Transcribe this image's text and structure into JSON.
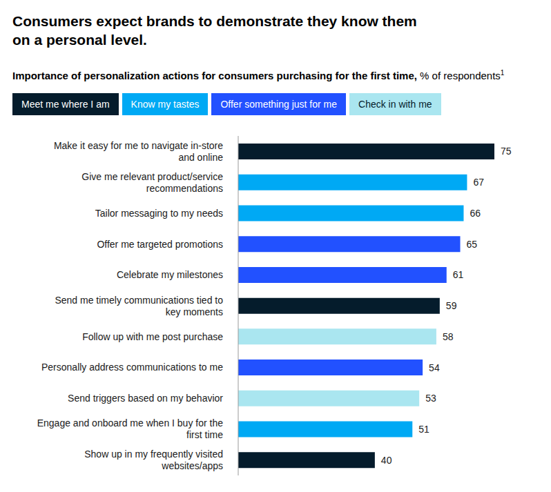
{
  "chart_data": {
    "type": "bar",
    "orientation": "horizontal",
    "title": "Consumers expect brands to demonstrate they know them on a personal level.",
    "subtitle": "Importance of personalization actions for consumers purchasing for the first time,",
    "subtitle_unit": "% of respondents",
    "subtitle_note": "1",
    "categories": [
      "Make it easy for me to navigate in-store and online",
      "Give me relevant product/service recommendations",
      "Tailor messaging to my needs",
      "Offer me targeted promotions",
      "Celebrate my milestones",
      "Send me timely communications tied to key moments",
      "Follow up with me post purchase",
      "Personally address communications to me",
      "Send triggers based on my behavior",
      "Engage and onboard me when I buy for the first time",
      "Show up in my frequently visited websites/apps"
    ],
    "series": [
      {
        "name": "Meet me where I am",
        "color": "#051c2c",
        "values": [
          75,
          null,
          null,
          null,
          null,
          59,
          null,
          null,
          null,
          null,
          40
        ]
      },
      {
        "name": "Know my tastes",
        "color": "#00a9f4",
        "values": [
          null,
          67,
          66,
          null,
          null,
          null,
          null,
          null,
          null,
          51,
          null
        ]
      },
      {
        "name": "Offer something just for me",
        "color": "#2251ff",
        "values": [
          null,
          null,
          null,
          65,
          61,
          null,
          null,
          54,
          null,
          null,
          null
        ]
      },
      {
        "name": "Check in with me",
        "color": "#aae6f0",
        "values": [
          null,
          null,
          null,
          null,
          null,
          null,
          58,
          null,
          53,
          null,
          null
        ]
      }
    ],
    "data_labels": true,
    "tick_labels": "y"
  }
}
